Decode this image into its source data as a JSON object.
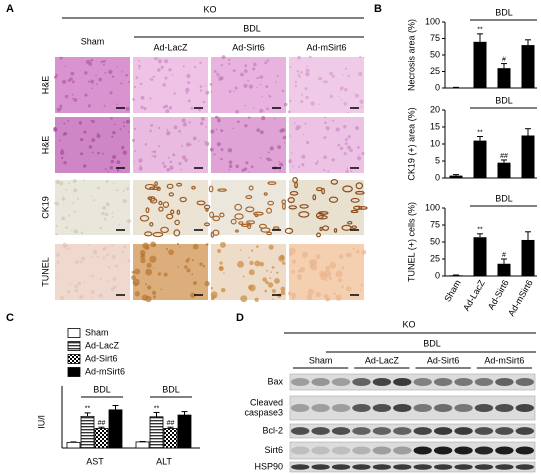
{
  "panels": {
    "a": "A",
    "b": "B",
    "c": "C",
    "d": "D"
  },
  "histology": {
    "ko": "KO",
    "bdl": "BDL",
    "columns": [
      "Sham",
      "Ad-LacZ",
      "Ad-Sirt6",
      "Ad-mSirt6"
    ],
    "rows": [
      "H&E",
      "H&E",
      "CK19",
      "TUNEL"
    ]
  },
  "chart_data": [
    {
      "type": "bar",
      "y_label": "Necrosis area (%)",
      "ylim": [
        0,
        100
      ],
      "yticks": [
        0,
        25,
        50,
        75,
        100
      ],
      "values": [
        0.5,
        70,
        30,
        65
      ],
      "errors": [
        0.5,
        12,
        7,
        8
      ],
      "annotations": [
        null,
        "**",
        "#",
        null
      ],
      "group_label": "BDL",
      "color": "#000000"
    },
    {
      "type": "bar",
      "y_label": "CK19 (+) area (%)",
      "ylim": [
        0,
        20
      ],
      "yticks": [
        0,
        5,
        10,
        15,
        20
      ],
      "values": [
        0.7,
        11,
        4.5,
        12.5
      ],
      "errors": [
        0.3,
        1.2,
        0.8,
        2
      ],
      "annotations": [
        null,
        "**",
        "##",
        null
      ],
      "group_label": "BDL",
      "color": "#000000"
    },
    {
      "type": "bar",
      "y_label": "TUNEL (+) cells (%)",
      "ylim": [
        0,
        100
      ],
      "yticks": [
        0,
        25,
        50,
        75,
        100
      ],
      "categories": [
        "Sham",
        "Ad-LacZ",
        "Ad-Sirt6",
        "Ad-mSirt6"
      ],
      "values": [
        1,
        57,
        18,
        53
      ],
      "errors": [
        0.5,
        5,
        7,
        12
      ],
      "annotations": [
        null,
        "**",
        "#",
        null
      ],
      "group_label": "BDL",
      "color": "#000000"
    },
    {
      "type": "grouped_bar",
      "y_label": "IU/l",
      "ylim": [
        0,
        120
      ],
      "categories": [
        "AST",
        "ALT"
      ],
      "group_labels": [
        "BDL",
        "BDL"
      ],
      "series": [
        {
          "name": "Sham",
          "pattern": "none",
          "values": [
            13,
            14
          ],
          "errors": [
            1,
            1
          ],
          "annotations": [
            null,
            null
          ]
        },
        {
          "name": "Ad-LacZ",
          "pattern": "horizontal-stripes",
          "values": [
            73,
            72
          ],
          "errors": [
            8,
            10
          ],
          "annotations": [
            "**",
            "**"
          ]
        },
        {
          "name": "Ad-Sirt6",
          "pattern": "checker",
          "values": [
            45,
            45
          ],
          "errors": [
            3,
            3
          ],
          "annotations": [
            "##",
            "##"
          ]
        },
        {
          "name": "Ad-mSirt6",
          "pattern": "solid",
          "values": [
            88,
            76
          ],
          "errors": [
            10,
            8
          ],
          "annotations": [
            null,
            null
          ]
        }
      ]
    }
  ],
  "western_blot": {
    "ko": "KO",
    "bdl": "BDL",
    "groups": [
      "Sham",
      "Ad-LacZ",
      "Ad-Sirt6",
      "Ad-mSirt6"
    ],
    "rows": [
      [
        "Bax"
      ],
      [
        "Cleaved",
        "caspase3"
      ],
      [
        "Bcl-2"
      ],
      [
        "Sirt6"
      ],
      [
        "HSP90"
      ]
    ]
  }
}
